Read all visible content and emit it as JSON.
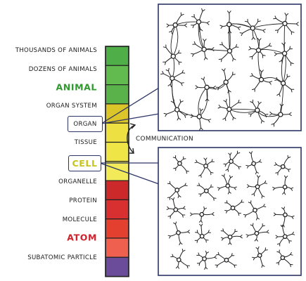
{
  "scale": {
    "labels": [
      {
        "key": "thousands",
        "text": "THOUSANDS OF ANIMALS"
      },
      {
        "key": "dozens",
        "text": "DOZENS OF ANIMALS"
      },
      {
        "key": "animal",
        "text": "ANIMAL",
        "color": "#2e9a2e"
      },
      {
        "key": "organ-system",
        "text": "ORGAN SYSTEM"
      },
      {
        "key": "organ",
        "text": "ORGAN"
      },
      {
        "key": "tissue",
        "text": "TISSUE"
      },
      {
        "key": "cell",
        "text": "CELL",
        "color": "#c7c41c"
      },
      {
        "key": "organelle",
        "text": "ORGANELLE"
      },
      {
        "key": "protein",
        "text": "PROTEIN"
      },
      {
        "key": "molecule",
        "text": "MOLECULE"
      },
      {
        "key": "atom",
        "text": "ATOM",
        "color": "#d0202a"
      },
      {
        "key": "subatomic",
        "text": "SUBATOMIC PARTICLE"
      }
    ],
    "segment_colors": [
      "#4fae47",
      "#61bb4e",
      "#5ab24a",
      "#dcc528",
      "#ede043",
      "#efe546",
      "#f3ea59",
      "#cc2a2a",
      "#d83030",
      "#e3402f",
      "#f0604f",
      "#6a4c9a"
    ]
  },
  "communication_label": "COMMUNICATION",
  "colors": {
    "frame": "#2b3566",
    "stroke": "#222222"
  },
  "panels": [
    {
      "name": "connected-neuron-network",
      "connected": true
    },
    {
      "name": "isolated-neurons",
      "connected": false
    }
  ]
}
